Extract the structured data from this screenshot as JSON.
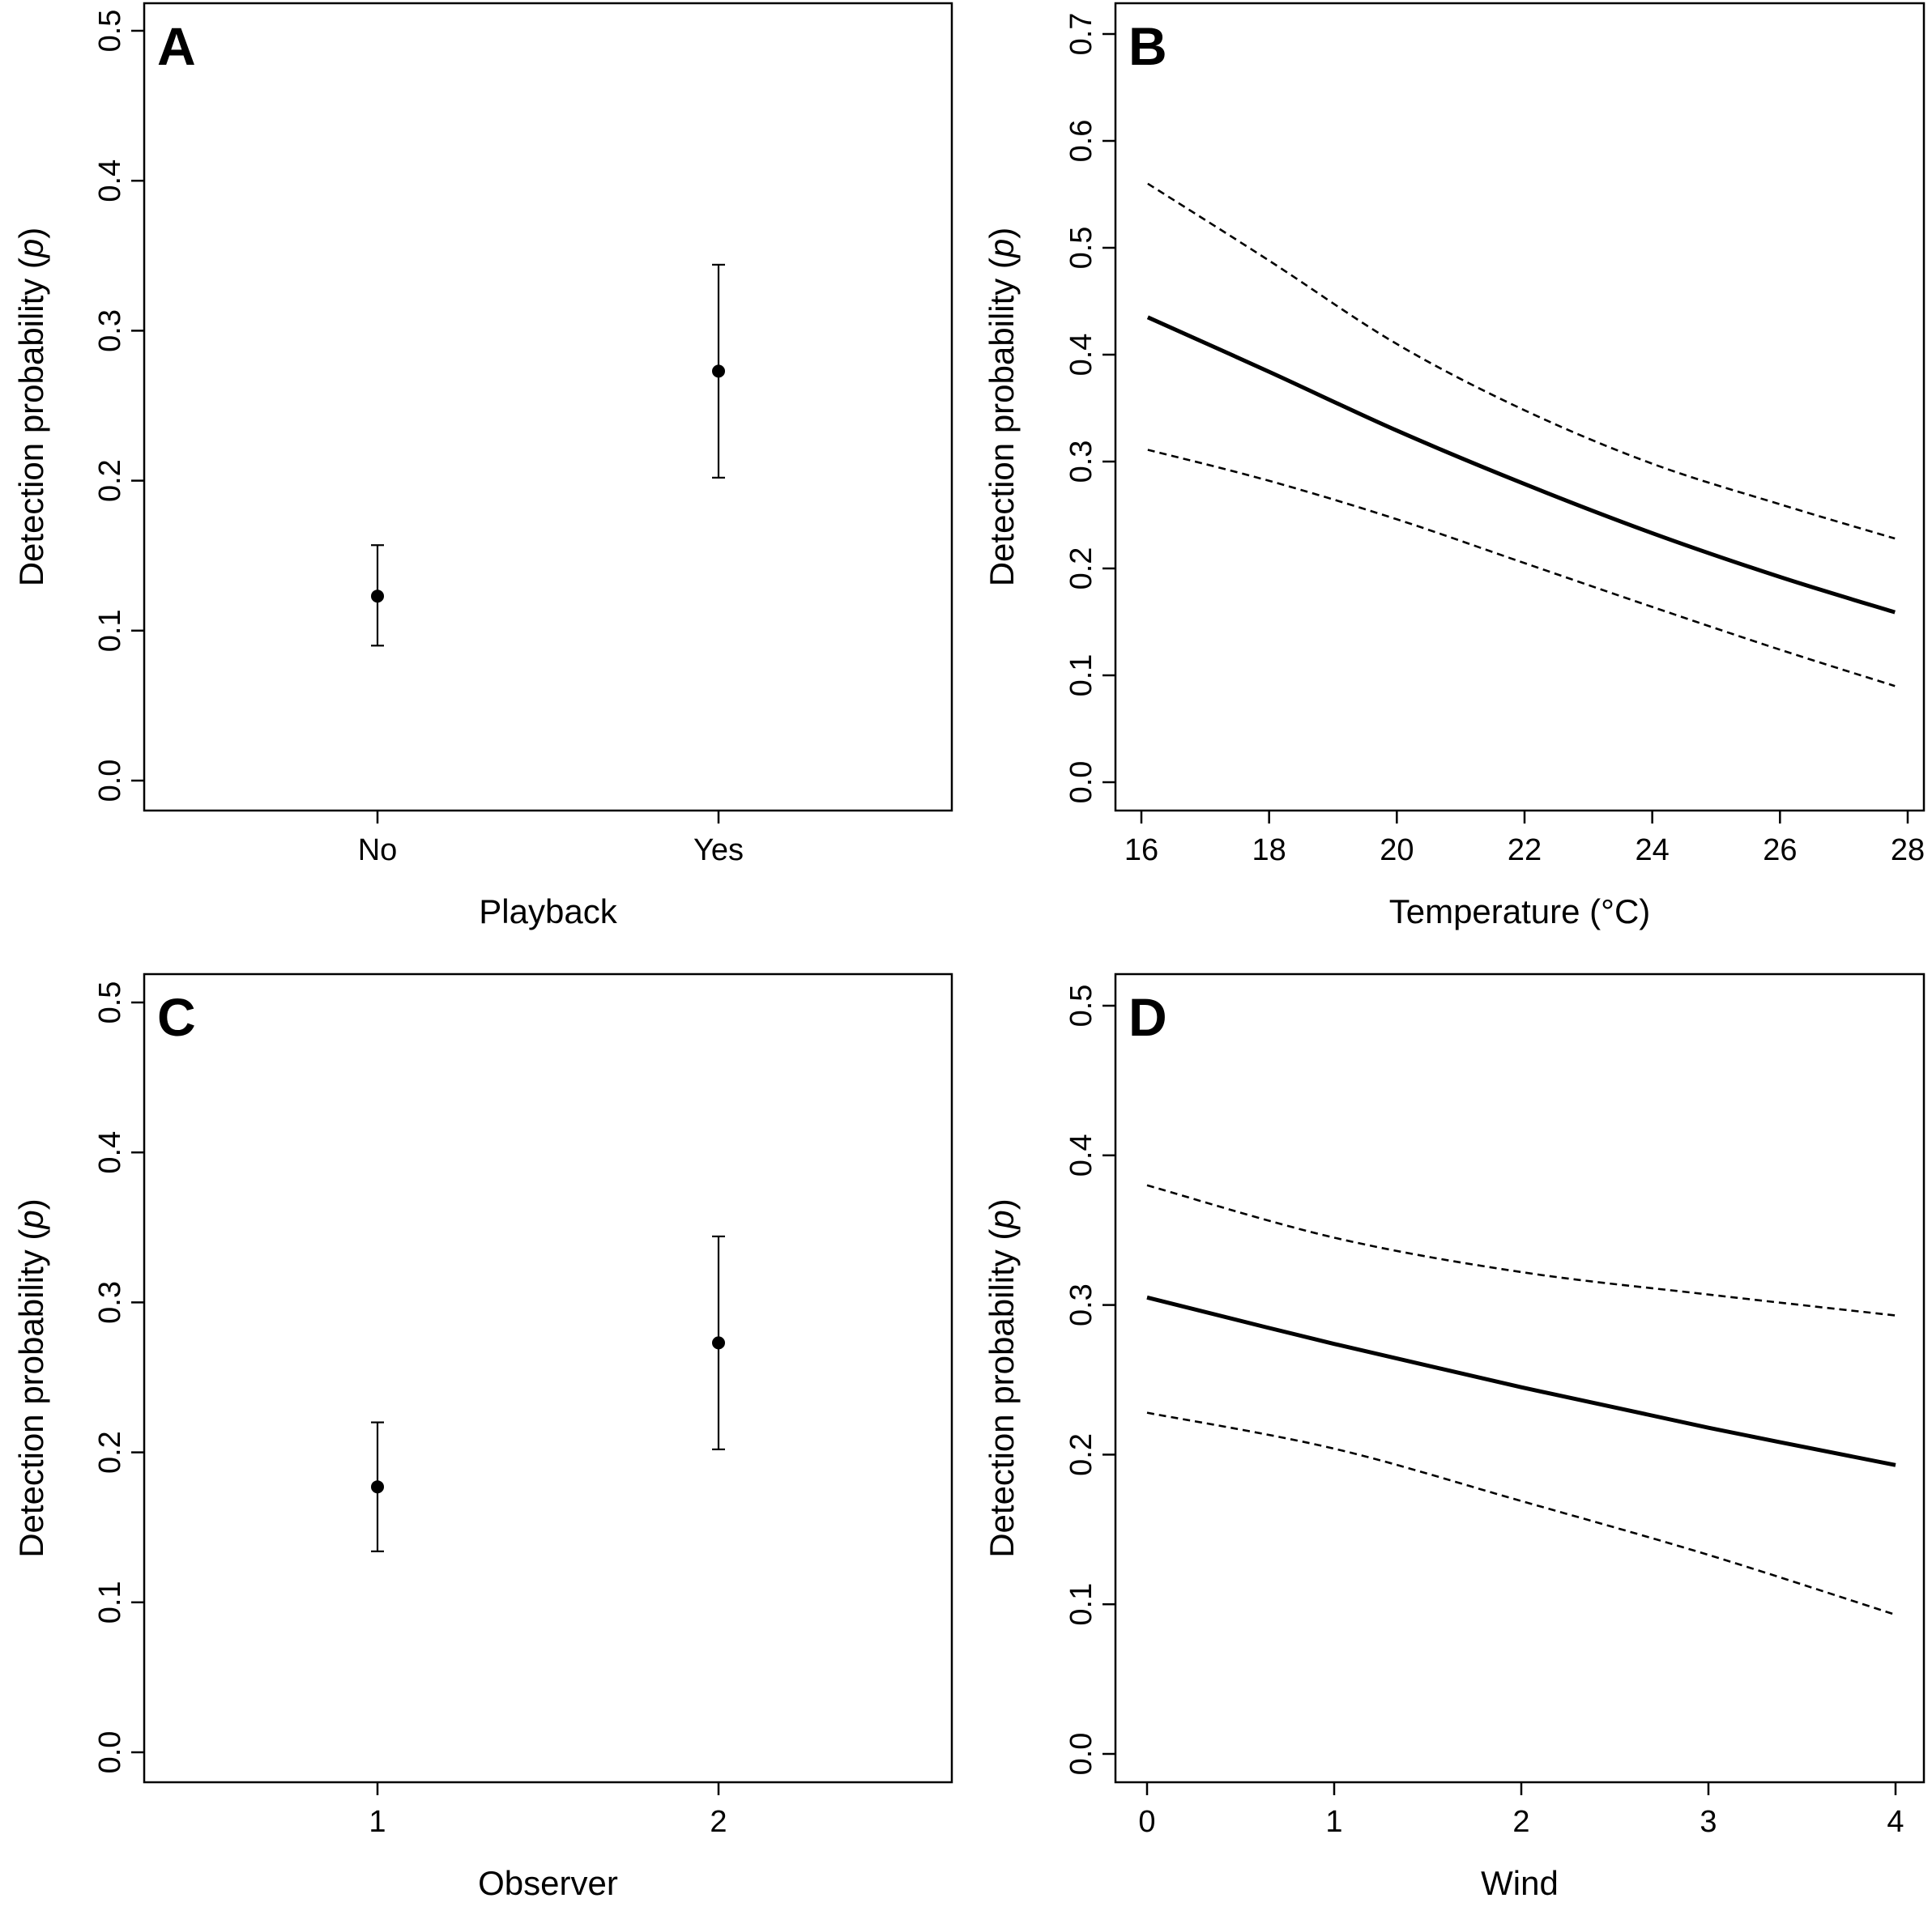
{
  "chart_data": [
    {
      "panel": "A",
      "type": "scatter",
      "xlabel": "Playback",
      "ylabel": "Detection probability (p)",
      "categories": [
        "No",
        "Yes"
      ],
      "values": [
        0.123,
        0.273
      ],
      "ci_low": [
        0.09,
        0.202
      ],
      "ci_high": [
        0.157,
        0.344
      ],
      "ylim": [
        0,
        0.5
      ],
      "yticks": [
        "0.0",
        "0.1",
        "0.2",
        "0.3",
        "0.4",
        "0.5"
      ],
      "grid": false
    },
    {
      "panel": "B",
      "type": "line",
      "xlabel": "Temperature (°C)",
      "ylabel": "Detection probability (p)",
      "x": [
        16.1,
        18,
        20,
        22,
        24,
        26,
        27.8
      ],
      "series": [
        {
          "values": [
            0.435,
            0.384,
            0.329,
            0.279,
            0.233,
            0.192,
            0.159
          ],
          "style": "solid"
        },
        {
          "values": [
            0.56,
            0.488,
            0.41,
            0.348,
            0.298,
            0.26,
            0.228
          ],
          "style": "dashed"
        },
        {
          "values": [
            0.311,
            0.282,
            0.246,
            0.205,
            0.164,
            0.124,
            0.09
          ],
          "style": "dashed"
        }
      ],
      "xlim": [
        16,
        28
      ],
      "xticks": [
        "16",
        "18",
        "20",
        "22",
        "24",
        "26",
        "28"
      ],
      "ylim": [
        0,
        0.7
      ],
      "yticks": [
        "0.0",
        "0.1",
        "0.2",
        "0.3",
        "0.4",
        "0.5",
        "0.6",
        "0.7"
      ],
      "grid": false
    },
    {
      "panel": "C",
      "type": "scatter",
      "xlabel": "Observer",
      "ylabel": "Detection probability (p)",
      "categories": [
        "1",
        "2"
      ],
      "values": [
        0.177,
        0.273
      ],
      "ci_low": [
        0.134,
        0.202
      ],
      "ci_high": [
        0.22,
        0.344
      ],
      "ylim": [
        0,
        0.5
      ],
      "yticks": [
        "0.0",
        "0.1",
        "0.2",
        "0.3",
        "0.4",
        "0.5"
      ],
      "grid": false
    },
    {
      "panel": "D",
      "type": "line",
      "xlabel": "Wind",
      "ylabel": "Detection probability (p)",
      "x": [
        0,
        1,
        2,
        3,
        4
      ],
      "series": [
        {
          "values": [
            0.305,
            0.274,
            0.245,
            0.218,
            0.193
          ],
          "style": "solid"
        },
        {
          "values": [
            0.38,
            0.345,
            0.322,
            0.307,
            0.293
          ],
          "style": "dashed"
        },
        {
          "values": [
            0.228,
            0.204,
            0.169,
            0.133,
            0.093
          ],
          "style": "dashed"
        }
      ],
      "xlim": [
        0,
        4
      ],
      "xticks": [
        "0",
        "1",
        "2",
        "3",
        "4"
      ],
      "ylim": [
        0,
        0.5
      ],
      "yticks": [
        "0.0",
        "0.1",
        "0.2",
        "0.3",
        "0.4",
        "0.5"
      ],
      "grid": false
    }
  ]
}
